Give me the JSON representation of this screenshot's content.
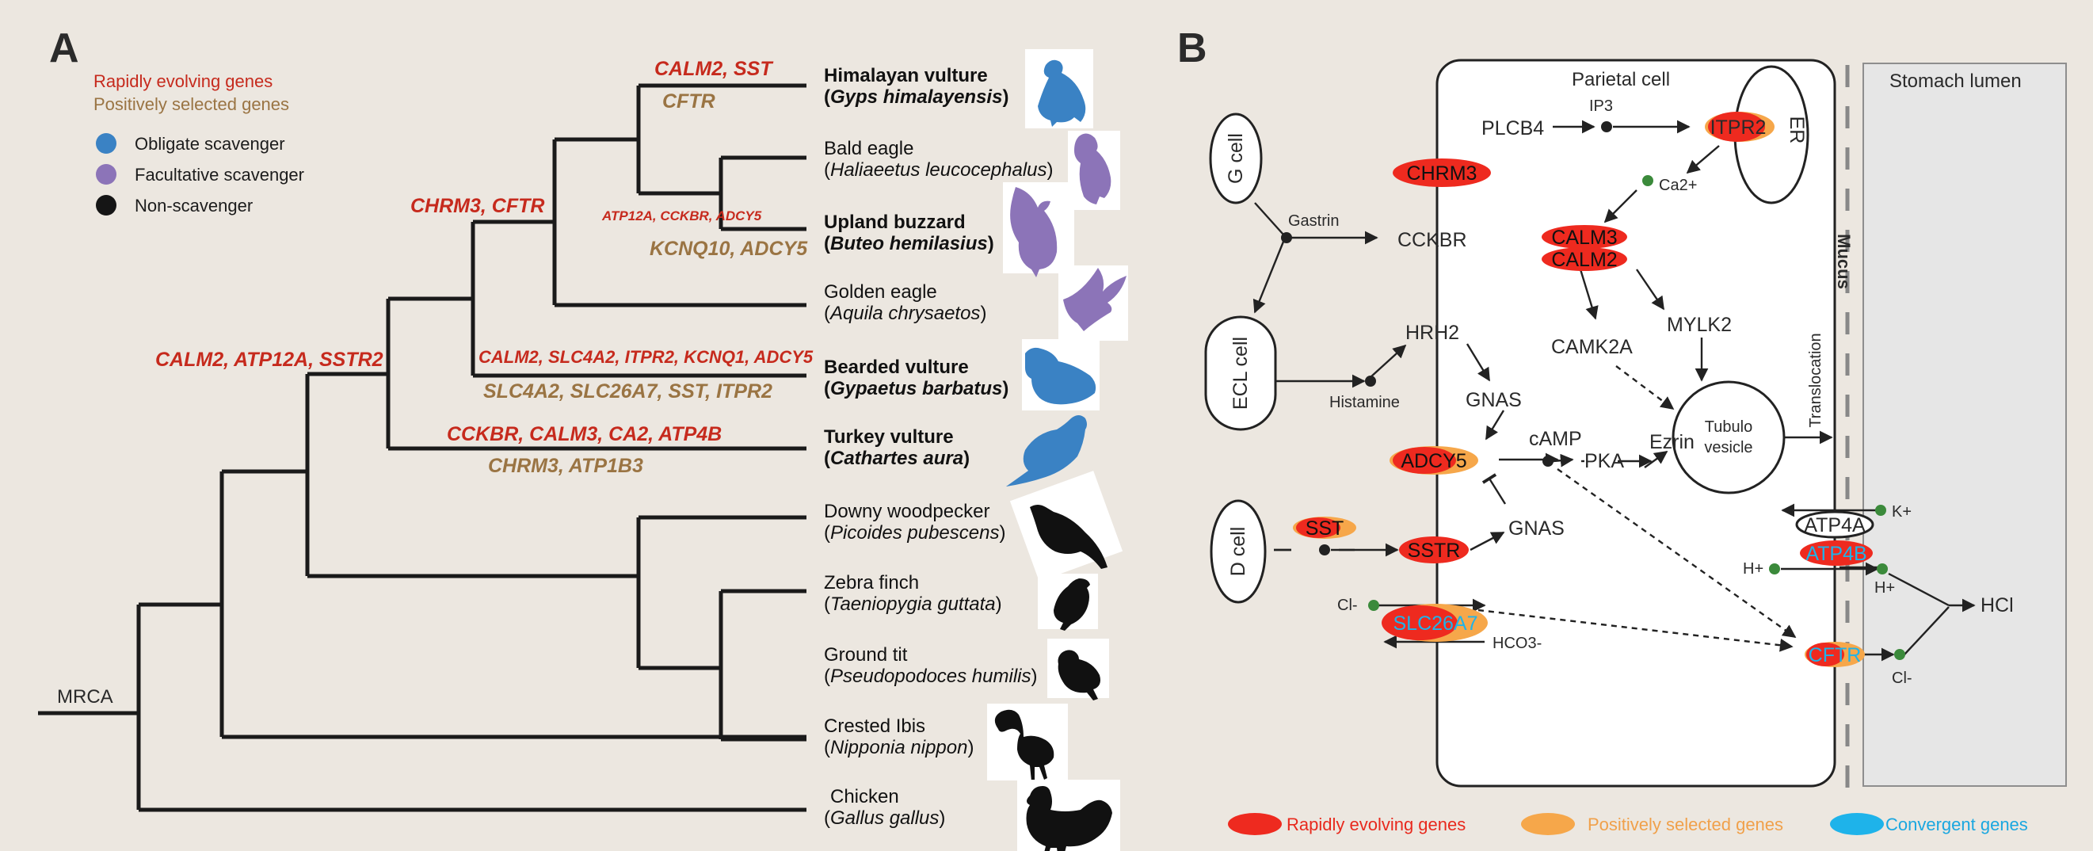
{
  "panelA": {
    "letter": "A",
    "legend": {
      "rapid": "Rapidly evolving genes",
      "positive": "Positively selected genes",
      "obligate": "Obligate scavenger",
      "facultative": "Facultative scavenger",
      "non": "Non-scavenger"
    },
    "colors": {
      "obligate": "#3a82c4",
      "facultative": "#8c74b8",
      "non": "#151515",
      "rapid": "#c62a1d",
      "positive": "#9a7443"
    },
    "root": "MRCA",
    "species": [
      {
        "common": "Himalayan vulture",
        "latin": "Gyps himalayensis",
        "bold": true,
        "status": "obligate"
      },
      {
        "common": "Bald eagle",
        "latin": "Haliaeetus leucocephalus",
        "bold": false,
        "status": "facultative"
      },
      {
        "common": "Upland buzzard",
        "latin": "Buteo hemilasius",
        "bold": true,
        "status": "facultative"
      },
      {
        "common": "Golden eagle",
        "latin": "Aquila chrysaetos",
        "bold": false,
        "status": "facultative"
      },
      {
        "common": "Bearded vulture",
        "latin": "Gypaetus barbatus",
        "bold": true,
        "status": "obligate"
      },
      {
        "common": "Turkey vulture",
        "latin": "Cathartes aura",
        "bold": true,
        "status": "obligate"
      },
      {
        "common": "Downy woodpecker",
        "latin": "Picoides pubescens",
        "bold": false,
        "status": "non"
      },
      {
        "common": "Zebra finch",
        "latin": "Taeniopygia guttata",
        "bold": false,
        "status": "non"
      },
      {
        "common": "Ground tit",
        "latin": "Pseudopodoces humilis",
        "bold": false,
        "status": "non"
      },
      {
        "common": "Crested Ibis",
        "latin": "Nipponia nippon",
        "bold": false,
        "status": "non"
      },
      {
        "common": "Chicken",
        "latin": "Gallus gallus",
        "bold": false,
        "status": "non"
      }
    ],
    "branch_genes": {
      "himalayan_rapid": "CALM2, SST",
      "himalayan_pos": "CFTR",
      "eagles_rapid": "ATP12A, CCKBR, ADCY5",
      "buzzard_pos": "KCNQ10, ADCY5",
      "accip_rapid": "CHRM3, CFTR",
      "bearded_rapid": "CALM2, SLC4A2, ITPR2, KCNQ1, ADCY5",
      "bearded_pos": "SLC4A2, SLC26A7, SST, ITPR2",
      "raptor_rapid": "CALM2, ATP12A, SSTR2",
      "turkey_rapid": "CCKBR, CALM3, CA2, ATP4B",
      "turkey_pos": "CHRM3, ATP1B3"
    }
  },
  "panelB": {
    "letter": "B",
    "parietal_cell": "Parietal cell",
    "stomach_lumen": "Stomach lumen",
    "mucus": "Mucus",
    "translocation": "Translocation",
    "g_cell": "G cell",
    "ecl_cell": "ECL cell",
    "d_cell": "D cell",
    "er": "ER",
    "tubulo": "Tubulo",
    "vesicle": "vesicle",
    "labels": {
      "gastrin": "Gastrin",
      "histamine": "Histamine",
      "cckbr": "CCKBR",
      "hrh2": "HRH2",
      "chrm3": "CHRM3",
      "plcb4": "PLCB4",
      "ip3": "IP3",
      "itpr2": "ITPR2",
      "ca2": "Ca2+",
      "calm3": "CALM3",
      "calm2": "CALM2",
      "camk2a": "CAMK2A",
      "mylk2": "MYLK2",
      "gnas1": "GNAS",
      "gnas2": "GNAS",
      "adcy5": "ADCY5",
      "camp": "cAMP",
      "pka": "PKA",
      "ezrin": "Ezrin",
      "sst": "SST",
      "sstr": "SSTR",
      "cl_in": "Cl-",
      "slc26a7": "SLC26A7",
      "hco3": "HCO3-",
      "atp4a": "ATP4A",
      "atp4b": "ATP4B",
      "kplus": "K+",
      "hplus_in": "H+",
      "hplus_out": "H+",
      "hcl": "HCl",
      "cftr": "CFTR",
      "cl_out": "Cl-"
    },
    "legend": {
      "rapid": "Rapidly evolving genes",
      "positive": "Positively selected genes",
      "convergent": "Convergent genes"
    },
    "colors": {
      "rapid": "#ee2a1f",
      "positive": "#f6a74a",
      "convergent": "#1eb3ea",
      "legend_positive_text": "#f0a04a",
      "legend_convergent_text": "#1aa7e0"
    }
  }
}
